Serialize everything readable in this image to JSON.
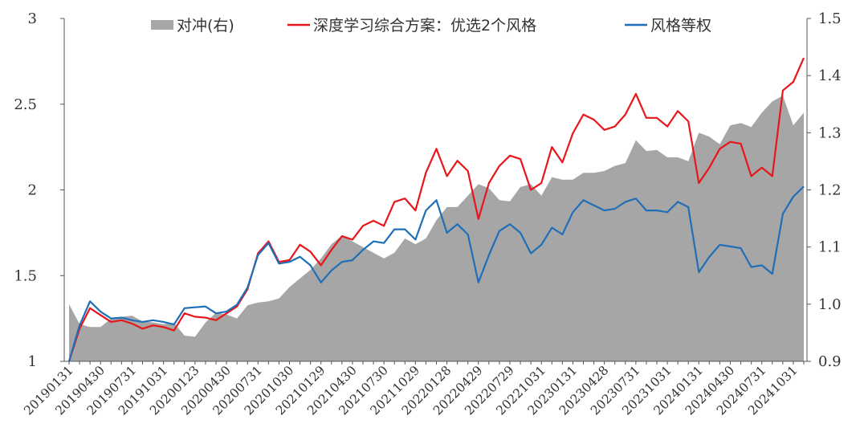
{
  "chart_data": {
    "type": "line",
    "legend": {
      "position": "top",
      "entries": [
        {
          "label": "对冲(右)",
          "kind": "area",
          "color": "#a6a6a6"
        },
        {
          "label": "深度学习综合方案：优选2个风格",
          "kind": "line",
          "color": "#e8161a"
        },
        {
          "label": "风格等权",
          "kind": "line",
          "color": "#1f6fb8"
        }
      ]
    },
    "y_left": {
      "min": 1,
      "max": 3,
      "ticks": [
        1,
        1.5,
        2,
        2.5,
        3
      ],
      "tick_labels": [
        "1",
        "1.5",
        "2",
        "2.5",
        "3"
      ]
    },
    "y_right": {
      "min": 0.9,
      "max": 1.5,
      "ticks": [
        0.9,
        1.0,
        1.1,
        1.2,
        1.3,
        1.4,
        1.5
      ],
      "tick_labels": [
        "0.9",
        "1.0",
        "1.1",
        "1.2",
        "1.3",
        "1.4",
        "1.5"
      ]
    },
    "x_tick_labels": [
      "20190131",
      "20190430",
      "20190731",
      "20191031",
      "20200123",
      "20200430",
      "20200731",
      "20201030",
      "20210129",
      "20210430",
      "20210730",
      "20211029",
      "20220128",
      "20220429",
      "20220729",
      "20221031",
      "20230131",
      "20230428",
      "20230731",
      "20231031",
      "20240131",
      "20240430",
      "20240731",
      "20241031"
    ],
    "x_tick_label_index": [
      0,
      3,
      6,
      9,
      12,
      15,
      18,
      21,
      24,
      27,
      30,
      33,
      36,
      39,
      42,
      45,
      48,
      51,
      54,
      57,
      60,
      63,
      66,
      69
    ],
    "grid": false,
    "series": [
      {
        "name": "对冲(右)",
        "type": "area",
        "axis": "right",
        "color": "#a6a6a6",
        "values": [
          1.0,
          0.965,
          0.96,
          0.96,
          0.975,
          0.978,
          0.98,
          0.97,
          0.968,
          0.965,
          0.967,
          0.945,
          0.943,
          0.968,
          0.985,
          0.982,
          0.975,
          0.998,
          1.003,
          1.005,
          1.01,
          1.03,
          1.045,
          1.06,
          1.08,
          1.105,
          1.12,
          1.11,
          1.1,
          1.09,
          1.08,
          1.09,
          1.115,
          1.105,
          1.115,
          1.147,
          1.17,
          1.17,
          1.19,
          1.21,
          1.203,
          1.182,
          1.18,
          1.205,
          1.21,
          1.19,
          1.222,
          1.218,
          1.218,
          1.23,
          1.23,
          1.233,
          1.242,
          1.247,
          1.287,
          1.268,
          1.27,
          1.257,
          1.257,
          1.25,
          1.3,
          1.293,
          1.28,
          1.313,
          1.317,
          1.31,
          1.335,
          1.355,
          1.365,
          1.313,
          1.335
        ]
      },
      {
        "name": "深度学习综合方案：优选2个风格",
        "type": "line",
        "axis": "left",
        "color": "#e8161a",
        "values": [
          1.0,
          1.19,
          1.31,
          1.27,
          1.23,
          1.24,
          1.22,
          1.19,
          1.21,
          1.2,
          1.18,
          1.28,
          1.26,
          1.255,
          1.24,
          1.28,
          1.32,
          1.42,
          1.63,
          1.7,
          1.58,
          1.59,
          1.68,
          1.64,
          1.56,
          1.65,
          1.73,
          1.71,
          1.79,
          1.82,
          1.79,
          1.93,
          1.95,
          1.88,
          2.1,
          2.24,
          2.08,
          2.17,
          2.11,
          1.83,
          2.04,
          2.14,
          2.2,
          2.18,
          2.0,
          2.04,
          2.25,
          2.16,
          2.33,
          2.44,
          2.41,
          2.35,
          2.37,
          2.44,
          2.56,
          2.42,
          2.42,
          2.37,
          2.46,
          2.4,
          2.04,
          2.13,
          2.24,
          2.28,
          2.27,
          2.08,
          2.13,
          2.08,
          2.58,
          2.63,
          2.77
        ]
      },
      {
        "name": "风格等权",
        "type": "line",
        "axis": "left",
        "color": "#1f6fb8",
        "values": [
          1.0,
          1.21,
          1.35,
          1.29,
          1.25,
          1.255,
          1.24,
          1.23,
          1.24,
          1.23,
          1.215,
          1.31,
          1.315,
          1.32,
          1.28,
          1.29,
          1.33,
          1.43,
          1.62,
          1.69,
          1.57,
          1.58,
          1.61,
          1.56,
          1.46,
          1.53,
          1.58,
          1.59,
          1.65,
          1.7,
          1.69,
          1.77,
          1.77,
          1.71,
          1.88,
          1.94,
          1.75,
          1.8,
          1.74,
          1.46,
          1.62,
          1.76,
          1.8,
          1.75,
          1.63,
          1.68,
          1.78,
          1.74,
          1.87,
          1.94,
          1.91,
          1.88,
          1.89,
          1.93,
          1.95,
          1.88,
          1.88,
          1.87,
          1.93,
          1.9,
          1.52,
          1.61,
          1.68,
          1.67,
          1.66,
          1.55,
          1.56,
          1.51,
          1.86,
          1.96,
          2.02
        ]
      }
    ]
  }
}
